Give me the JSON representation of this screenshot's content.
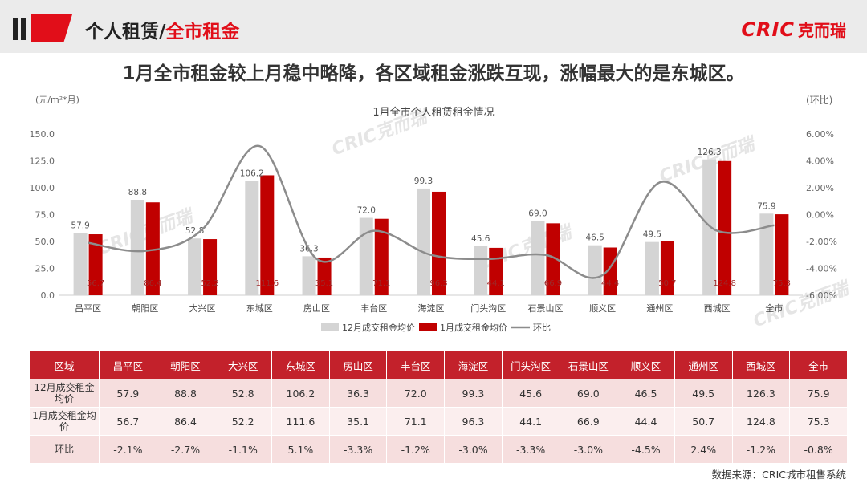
{
  "header": {
    "title_prefix": "个人租赁/",
    "title_highlight": "全市租金",
    "logo_latin": "CRIC",
    "logo_cn": "克而瑞"
  },
  "headline": "1月全市租金较上月稳中略降，各区域租金涨跌互现，涨幅最大的是东城区。",
  "units": {
    "left": "(元/m²*月)",
    "right": "(环比)"
  },
  "watermark_text": "CRIC克而瑞",
  "chart_data": {
    "type": "bar",
    "title": "1月全市个人租赁租金情况",
    "categories": [
      "昌平区",
      "朝阳区",
      "大兴区",
      "东城区",
      "房山区",
      "丰台区",
      "海淀区",
      "门头沟区",
      "石景山区",
      "顺义区",
      "通州区",
      "西城区",
      "全市"
    ],
    "series": [
      {
        "name": "12月成交租金均价",
        "type": "bar",
        "color": "#d4d4d4",
        "values": [
          57.9,
          88.8,
          52.8,
          106.2,
          36.3,
          72.0,
          99.3,
          45.6,
          69.0,
          46.5,
          49.5,
          126.3,
          75.9
        ],
        "labels": [
          "57.9",
          "88.8",
          "52.8",
          "106.2",
          "36.3",
          "72.0",
          "99.3",
          "45.6",
          "69.0",
          "46.5",
          "49.5",
          "126.3",
          "75.9"
        ]
      },
      {
        "name": "1月成交租金均价",
        "type": "bar",
        "color": "#c00000",
        "values": [
          56.7,
          86.4,
          52.2,
          111.6,
          35.1,
          71.1,
          96.3,
          44.1,
          66.9,
          44.4,
          50.7,
          124.8,
          75.3
        ],
        "labels": [
          "56.7",
          "86.4",
          "52.2",
          "111.6",
          "35.1",
          "71.1",
          "96.3",
          "44.1",
          "66.9",
          "44.4",
          "50.7",
          "124.8",
          "75.3"
        ]
      },
      {
        "name": "环比",
        "type": "line",
        "color": "#8c8c8c",
        "axis": "right",
        "values": [
          -2.1,
          -2.7,
          -1.1,
          5.1,
          -3.3,
          -1.2,
          -3.0,
          -3.3,
          -3.0,
          -4.5,
          2.4,
          -1.2,
          -0.8
        ]
      }
    ],
    "ylim": [
      0,
      150
    ],
    "yticks": [
      "0.0",
      "25.0",
      "50.0",
      "75.0",
      "100.0",
      "125.0",
      "150.0"
    ],
    "y2lim": [
      -6,
      6
    ],
    "y2ticks": [
      "-6.00%",
      "-4.00%",
      "-2.00%",
      "0.00%",
      "2.00%",
      "4.00%",
      "6.00%"
    ],
    "legend_position": "bottom"
  },
  "table": {
    "headers": [
      "区域",
      "昌平区",
      "朝阳区",
      "大兴区",
      "东城区",
      "房山区",
      "丰台区",
      "海淀区",
      "门头沟区",
      "石景山区",
      "顺义区",
      "通州区",
      "西城区",
      "全市"
    ],
    "rows": [
      {
        "label_line1": "12月成交租金",
        "label_line2": "均价",
        "values": [
          "57.9",
          "88.8",
          "52.8",
          "106.2",
          "36.3",
          "72.0",
          "99.3",
          "45.6",
          "69.0",
          "46.5",
          "49.5",
          "126.3",
          "75.9"
        ]
      },
      {
        "label_line1": "1月成交租金均",
        "label_line2": "价",
        "values": [
          "56.7",
          "86.4",
          "52.2",
          "111.6",
          "35.1",
          "71.1",
          "96.3",
          "44.1",
          "66.9",
          "44.4",
          "50.7",
          "124.8",
          "75.3"
        ]
      },
      {
        "label_line1": "环比",
        "label_line2": "",
        "values": [
          "-2.1%",
          "-2.7%",
          "-1.1%",
          "5.1%",
          "-3.3%",
          "-1.2%",
          "-3.0%",
          "-3.3%",
          "-3.0%",
          "-4.5%",
          "2.4%",
          "-1.2%",
          "-0.8%"
        ]
      }
    ]
  },
  "source": "数据来源：CRIC城市租售系统"
}
